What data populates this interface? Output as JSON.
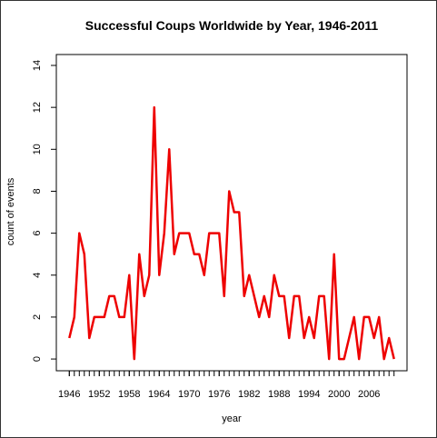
{
  "chart_data": {
    "type": "line",
    "title": "Successful Coups Worldwide by Year, 1946-2011",
    "x_label": "year",
    "y_label": "count of events",
    "x": [
      1946,
      1947,
      1948,
      1949,
      1950,
      1951,
      1952,
      1953,
      1954,
      1955,
      1956,
      1957,
      1958,
      1959,
      1960,
      1961,
      1962,
      1963,
      1964,
      1965,
      1966,
      1967,
      1968,
      1969,
      1970,
      1971,
      1972,
      1973,
      1974,
      1975,
      1976,
      1977,
      1978,
      1979,
      1980,
      1981,
      1982,
      1983,
      1984,
      1985,
      1986,
      1987,
      1988,
      1989,
      1990,
      1991,
      1992,
      1993,
      1994,
      1995,
      1996,
      1997,
      1998,
      1999,
      2000,
      2001,
      2002,
      2003,
      2004,
      2005,
      2006,
      2007,
      2008,
      2009,
      2010,
      2011
    ],
    "series": [
      {
        "name": "coups",
        "color": "#ee0000",
        "values": [
          1,
          2,
          6,
          5,
          1,
          2,
          2,
          2,
          3,
          3,
          2,
          2,
          4,
          0,
          5,
          3,
          4,
          12,
          4,
          6,
          10,
          5,
          6,
          6,
          6,
          5,
          5,
          4,
          6,
          6,
          6,
          3,
          8,
          7,
          7,
          3,
          4,
          3,
          2,
          3,
          2,
          4,
          3,
          3,
          1,
          3,
          3,
          1,
          2,
          1,
          3,
          3,
          0,
          5,
          0,
          0,
          1,
          2,
          0,
          2,
          2,
          1,
          2,
          0,
          1,
          0
        ]
      }
    ],
    "xlim": [
      1943.4,
      2013.6
    ],
    "ylim": [
      -0.56,
      14.52
    ],
    "xticks": [
      1946,
      1952,
      1958,
      1964,
      1970,
      1976,
      1982,
      1988,
      1994,
      2000,
      2006
    ],
    "yticks": [
      0,
      2,
      4,
      6,
      8,
      10,
      12,
      14
    ]
  }
}
